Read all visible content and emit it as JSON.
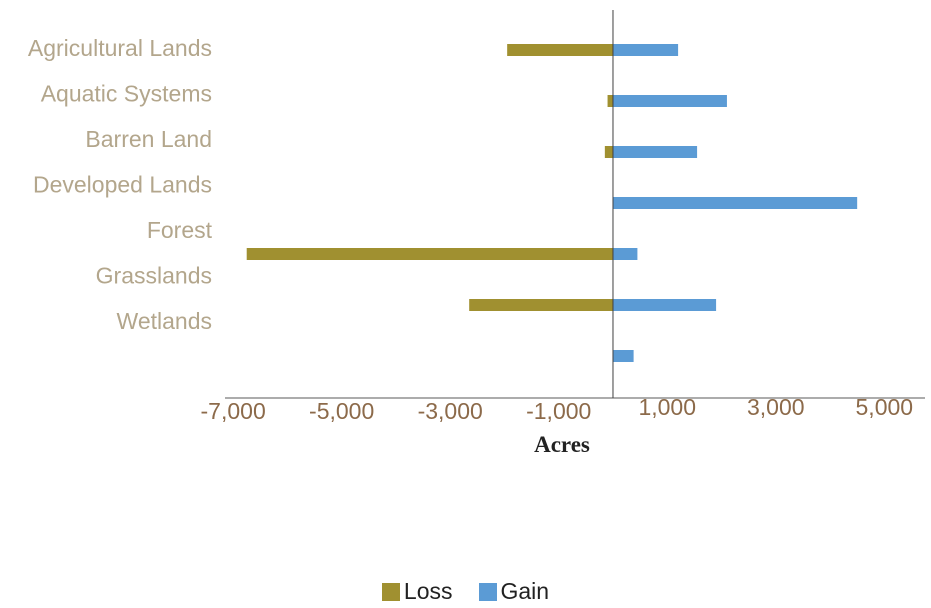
{
  "chart_data": {
    "type": "bar",
    "orientation": "horizontal",
    "categories": [
      "Agricultural Lands",
      "Aquatic Systems",
      "Barren Land",
      "Developed Lands",
      "Forest",
      "Grasslands",
      "Wetlands"
    ],
    "series": [
      {
        "name": "Loss",
        "color": "#a09030",
        "values": [
          -1950,
          -100,
          -150,
          0,
          -6750,
          -2650,
          0
        ]
      },
      {
        "name": "Gain",
        "color": "#5b9bd5",
        "values": [
          1200,
          2100,
          1550,
          4500,
          450,
          1900,
          380
        ]
      }
    ],
    "xticks": [
      -7000,
      -5000,
      -3000,
      -1000,
      1000,
      3000,
      5000
    ],
    "xtick_labels": [
      "-7,000",
      "-5,000",
      "-3,000",
      "-1,000",
      "1,000",
      "3,000",
      "5,000"
    ],
    "xlim": [
      -7150,
      5750
    ],
    "xlabel": "Acres",
    "legend_position": "bottom"
  }
}
